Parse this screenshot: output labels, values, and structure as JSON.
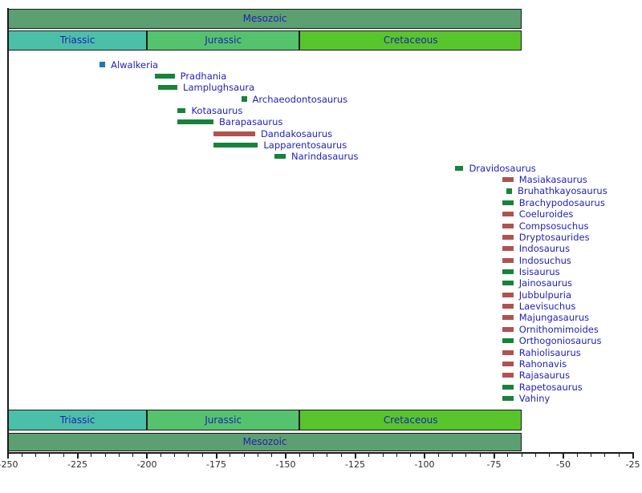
{
  "chart_data": {
    "type": "timeline",
    "description": "Temporal ranges of Indian and Madagascan dinosaur genera across the Mesozoic, in millions of years ago",
    "x_axis": {
      "range": [
        -250,
        -25
      ],
      "major_ticks": [
        -250,
        -225,
        -200,
        -175,
        -150,
        -125,
        -100,
        -75,
        -50,
        -25
      ],
      "minor_tick_step": 5
    },
    "era": {
      "name": "Mesozoic",
      "start": -250,
      "end": -65,
      "color": "#5c9f70"
    },
    "periods": [
      {
        "name": "Triassic",
        "start": -250,
        "end": -200,
        "color": "#4cbfa9"
      },
      {
        "name": "Jurassic",
        "start": -200,
        "end": -145,
        "color": "#55c36d"
      },
      {
        "name": "Cretaceous",
        "start": -145,
        "end": -65,
        "color": "#57c52b"
      }
    ],
    "colors": {
      "green_bar": "#17823c",
      "red_bar": "#b05252",
      "blue_point": "#1f77b4",
      "label": "#2222b8",
      "axis": "#1a1a1a",
      "tick_label": "#2b2b2b",
      "background": "#ffffff"
    },
    "taxa": [
      {
        "name": "Alwalkeria",
        "start": -217,
        "end": -215,
        "color": "blue_point",
        "marker": "point"
      },
      {
        "name": "Pradhania",
        "start": -197,
        "end": -190,
        "color": "green_bar",
        "marker": "bar"
      },
      {
        "name": "Lamplughsaura",
        "start": -196,
        "end": -189,
        "color": "green_bar",
        "marker": "bar"
      },
      {
        "name": "Archaeodontosaurus",
        "start": -166,
        "end": -164,
        "color": "green_bar",
        "marker": "point"
      },
      {
        "name": "Kotasaurus",
        "start": -189,
        "end": -186,
        "color": "green_bar",
        "marker": "bar"
      },
      {
        "name": "Barapasaurus",
        "start": -189,
        "end": -176,
        "color": "green_bar",
        "marker": "bar"
      },
      {
        "name": "Dandakosaurus",
        "start": -176,
        "end": -161,
        "color": "red_bar",
        "marker": "bar"
      },
      {
        "name": "Lapparentosaurus",
        "start": -176,
        "end": -160,
        "color": "green_bar",
        "marker": "bar"
      },
      {
        "name": "Narindasaurus",
        "start": -154,
        "end": -150,
        "color": "green_bar",
        "marker": "bar"
      },
      {
        "name": "Dravidosaurus",
        "start": -89,
        "end": -86,
        "color": "green_bar",
        "marker": "bar"
      },
      {
        "name": "Masiakasaurus",
        "start": -72,
        "end": -68,
        "color": "red_bar",
        "marker": "bar"
      },
      {
        "name": "Bruhathkayosaurus",
        "start": -70.5,
        "end": -68.5,
        "color": "green_bar",
        "marker": "point"
      },
      {
        "name": "Brachypodosaurus",
        "start": -72,
        "end": -68,
        "color": "green_bar",
        "marker": "bar"
      },
      {
        "name": "Coeluroides",
        "start": -72,
        "end": -68,
        "color": "red_bar",
        "marker": "bar"
      },
      {
        "name": "Compsosuchus",
        "start": -72,
        "end": -68,
        "color": "red_bar",
        "marker": "bar"
      },
      {
        "name": "Dryptosaurides",
        "start": -72,
        "end": -68,
        "color": "red_bar",
        "marker": "bar"
      },
      {
        "name": "Indosaurus",
        "start": -72,
        "end": -68,
        "color": "red_bar",
        "marker": "bar"
      },
      {
        "name": "Indosuchus",
        "start": -72,
        "end": -68,
        "color": "red_bar",
        "marker": "bar"
      },
      {
        "name": "Isisaurus",
        "start": -72,
        "end": -68,
        "color": "green_bar",
        "marker": "bar"
      },
      {
        "name": "Jainosaurus",
        "start": -72,
        "end": -68,
        "color": "green_bar",
        "marker": "bar"
      },
      {
        "name": "Jubbulpuria",
        "start": -72,
        "end": -68,
        "color": "red_bar",
        "marker": "bar"
      },
      {
        "name": "Laevisuchus",
        "start": -72,
        "end": -68,
        "color": "red_bar",
        "marker": "bar"
      },
      {
        "name": "Majungasaurus",
        "start": -72,
        "end": -68,
        "color": "red_bar",
        "marker": "bar"
      },
      {
        "name": "Ornithomimoides",
        "start": -72,
        "end": -68,
        "color": "red_bar",
        "marker": "bar"
      },
      {
        "name": "Orthogoniosaurus",
        "start": -72,
        "end": -68,
        "color": "green_bar",
        "marker": "bar"
      },
      {
        "name": "Rahiolisaurus",
        "start": -72,
        "end": -68,
        "color": "red_bar",
        "marker": "bar"
      },
      {
        "name": "Rahonavis",
        "start": -72,
        "end": -68,
        "color": "red_bar",
        "marker": "bar"
      },
      {
        "name": "Rajasaurus",
        "start": -72,
        "end": -68,
        "color": "red_bar",
        "marker": "bar"
      },
      {
        "name": "Rapetosaurus",
        "start": -72,
        "end": -68,
        "color": "green_bar",
        "marker": "bar"
      },
      {
        "name": "Vahiny",
        "start": -72,
        "end": -68,
        "color": "green_bar",
        "marker": "bar"
      }
    ]
  }
}
